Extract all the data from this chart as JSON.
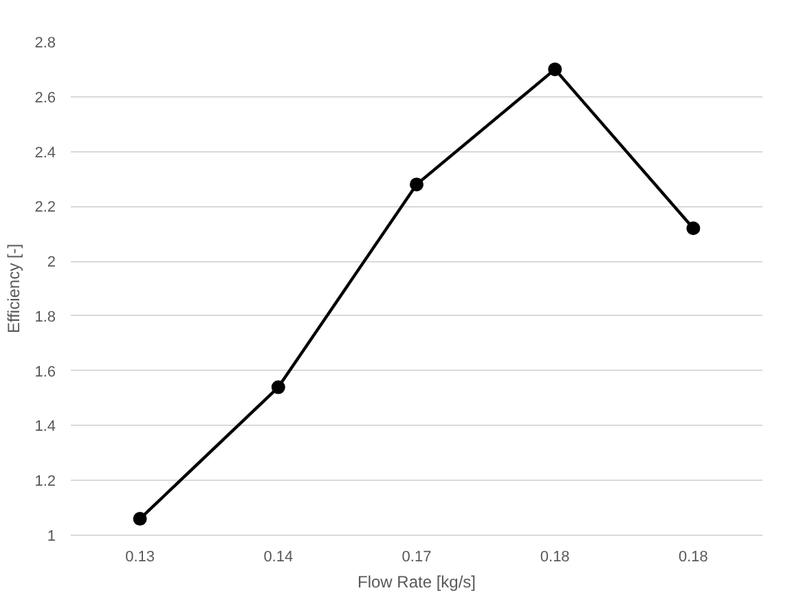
{
  "chart_data": {
    "type": "line",
    "xlabel": "Flow Rate [kg/s]",
    "ylabel": "Efficiency [-]",
    "categories": [
      "0.13",
      "0.14",
      "0.17",
      "0.18",
      "0.18"
    ],
    "values": [
      1.06,
      1.54,
      2.28,
      2.7,
      2.12
    ],
    "color": "#000000",
    "ylim": [
      1,
      2.8
    ],
    "yticks": [
      1,
      {
        "value": 1.2,
        "label": "1.2"
      },
      {
        "value": 1.4,
        "label": "1.4"
      },
      {
        "value": 1.6,
        "label": "1.6"
      },
      {
        "value": 1.8,
        "label": "1.8"
      },
      2,
      {
        "value": 2.2,
        "label": "2.2"
      },
      {
        "value": 2.4,
        "label": "2.4"
      },
      {
        "value": 2.6,
        "label": "2.6"
      },
      {
        "value": 2.8,
        "label": "2.8"
      }
    ],
    "grid": "y",
    "marker": "circle",
    "line_style": "solid"
  }
}
